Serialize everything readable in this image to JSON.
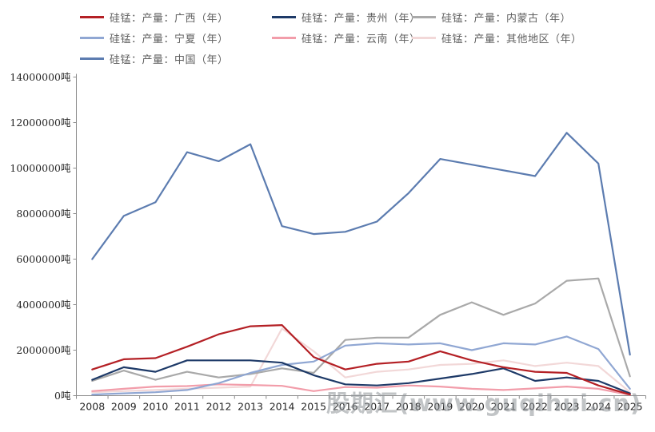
{
  "watermark": "股期汇(www.guqihui.cn)",
  "unit_suffix": "吨",
  "legend": [
    {
      "label": "硅锰：产量：广西（年）",
      "color": "#b42025"
    },
    {
      "label": "硅锰：产量：贵州（年）",
      "color": "#1e3a68"
    },
    {
      "label": "硅锰：产量：内蒙古（年）",
      "color": "#a9a9a9"
    },
    {
      "label": "硅锰：产量：宁夏（年）",
      "color": "#90a7d3"
    },
    {
      "label": "硅锰：产量：云南（年）",
      "color": "#f29daa"
    },
    {
      "label": "硅锰：产量：其他地区（年）",
      "color": "#f2d8d8"
    },
    {
      "label": "硅锰：产量：中国（年）",
      "color": "#5c7cb0"
    }
  ],
  "chart_data": {
    "type": "line",
    "title": "",
    "xlabel": "",
    "ylabel": "吨",
    "ylim": [
      0,
      14000000
    ],
    "ytick_step": 2000000,
    "grid": false,
    "legend_position": "top",
    "categories": [
      "2008",
      "2009",
      "2010",
      "2011",
      "2012",
      "2013",
      "2014",
      "2015",
      "2016",
      "2017",
      "2018",
      "2019",
      "2020",
      "2021",
      "2022",
      "2023",
      "2024",
      "2025"
    ],
    "series": [
      {
        "name": "硅锰：产量：其他地区（年）",
        "color": "#f2d8d8",
        "values": [
          150000,
          200000,
          250000,
          300000,
          350000,
          400000,
          2950000,
          1950000,
          800000,
          1050000,
          1150000,
          1350000,
          1400000,
          1550000,
          1300000,
          1450000,
          1300000,
          150000
        ]
      },
      {
        "name": "硅锰：产量：内蒙古（年）",
        "color": "#a9a9a9",
        "values": [
          650000,
          1100000,
          700000,
          1050000,
          800000,
          950000,
          1200000,
          1000000,
          2450000,
          2550000,
          2550000,
          3550000,
          4100000,
          3550000,
          4050000,
          5050000,
          5150000,
          850000
        ]
      },
      {
        "name": "硅锰：产量：云南（年）",
        "color": "#f29daa",
        "values": [
          200000,
          300000,
          400000,
          420000,
          500000,
          470000,
          430000,
          200000,
          380000,
          350000,
          450000,
          400000,
          300000,
          250000,
          320000,
          400000,
          300000,
          30000
        ]
      },
      {
        "name": "硅锰：产量：宁夏（年）",
        "color": "#90a7d3",
        "values": [
          50000,
          100000,
          150000,
          250000,
          550000,
          1000000,
          1350000,
          1500000,
          2200000,
          2300000,
          2250000,
          2300000,
          2000000,
          2300000,
          2250000,
          2600000,
          2050000,
          300000
        ]
      },
      {
        "name": "硅锰：产量：贵州（年）",
        "color": "#1e3a68",
        "values": [
          700000,
          1250000,
          1050000,
          1550000,
          1550000,
          1550000,
          1450000,
          900000,
          500000,
          450000,
          550000,
          750000,
          950000,
          1200000,
          650000,
          800000,
          650000,
          100000
        ]
      },
      {
        "name": "硅锰：产量：广西（年）",
        "color": "#b42025",
        "values": [
          1150000,
          1600000,
          1650000,
          2150000,
          2700000,
          3050000,
          3100000,
          1700000,
          1150000,
          1400000,
          1500000,
          1950000,
          1550000,
          1250000,
          1050000,
          1000000,
          450000,
          50000
        ]
      },
      {
        "name": "硅锰：产量：中国（年）",
        "color": "#5c7cb0",
        "values": [
          6000000,
          7900000,
          8500000,
          10700000,
          10300000,
          11050000,
          7450000,
          7100000,
          7200000,
          7650000,
          8900000,
          10400000,
          10150000,
          9900000,
          9650000,
          11550000,
          10200000,
          1800000
        ]
      }
    ]
  }
}
